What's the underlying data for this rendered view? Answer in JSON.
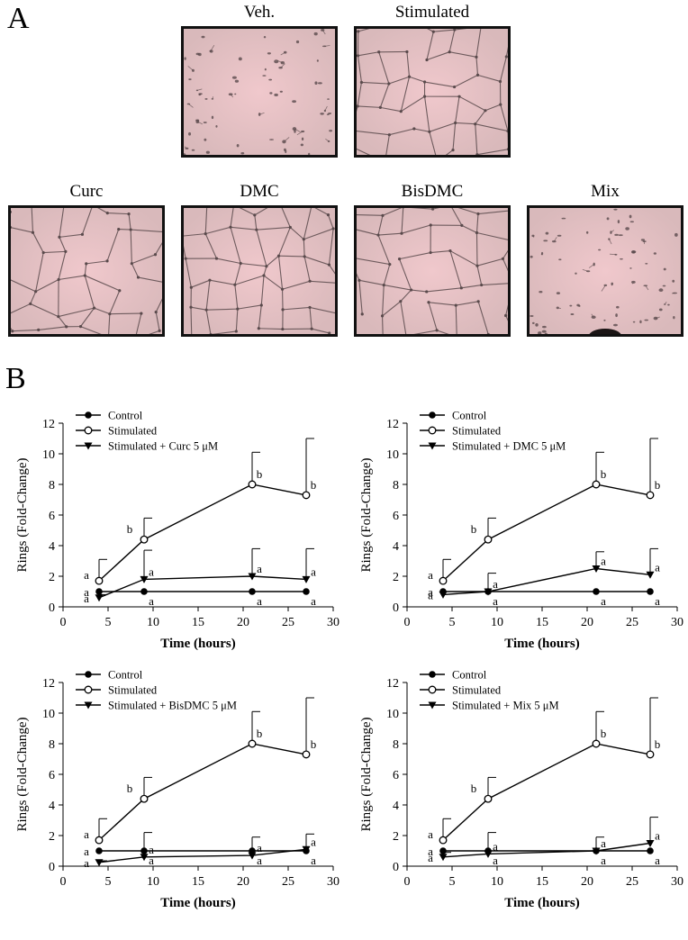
{
  "panels": {
    "a": "A",
    "b": "B"
  },
  "micrographs": [
    {
      "id": "veh",
      "label": "Veh.",
      "pattern": "sparse"
    },
    {
      "id": "stimulated",
      "label": "Stimulated",
      "pattern": "network"
    },
    {
      "id": "curc",
      "label": "Curc",
      "pattern": "network"
    },
    {
      "id": "dmc",
      "label": "DMC",
      "pattern": "network"
    },
    {
      "id": "bisdmc",
      "label": "BisDMC",
      "pattern": "network"
    },
    {
      "id": "mix",
      "label": "Mix",
      "pattern": "sparse"
    }
  ],
  "colors": {
    "micro_background": "#d9b9bb",
    "micro_center": "#f0c8cc",
    "micro_cells": "#5a4a4c",
    "line": "#000000"
  },
  "chart_data": [
    {
      "type": "line",
      "xlabel": "Time (hours)",
      "ylabel": "Rings (Fold-Change)",
      "xlim": [
        0,
        30
      ],
      "ylim": [
        0,
        12
      ],
      "xticks": [
        0,
        5,
        10,
        15,
        20,
        25,
        30
      ],
      "yticks": [
        0,
        2,
        4,
        6,
        8,
        10,
        12
      ],
      "grid": false,
      "legend_position": "top-left",
      "x": [
        4,
        9,
        21,
        27
      ],
      "series": [
        {
          "name": "Control",
          "marker": "filled-circle",
          "values": [
            1,
            1,
            1,
            1
          ],
          "errors": [
            0,
            0,
            0,
            0
          ],
          "labels": [
            "a",
            "a",
            "a",
            "a"
          ]
        },
        {
          "name": "Stimulated",
          "marker": "open-circle",
          "values": [
            1.7,
            4.4,
            8.0,
            7.3
          ],
          "errors": [
            1.4,
            1.4,
            2.1,
            3.7
          ],
          "labels": [
            "a",
            "b",
            "b",
            "b"
          ]
        },
        {
          "name": "Stimulated + Curc 5 μM",
          "marker": "filled-triangle",
          "values": [
            0.6,
            1.8,
            2.0,
            1.8
          ],
          "errors": [
            0.2,
            1.9,
            1.8,
            2.0
          ],
          "labels": [
            "a",
            "a",
            "a",
            "a"
          ]
        }
      ]
    },
    {
      "type": "line",
      "xlabel": "Time (hours)",
      "ylabel": "Rings (Fold-Change)",
      "xlim": [
        0,
        30
      ],
      "ylim": [
        0,
        12
      ],
      "xticks": [
        0,
        5,
        10,
        15,
        20,
        25,
        30
      ],
      "yticks": [
        0,
        2,
        4,
        6,
        8,
        10,
        12
      ],
      "grid": false,
      "legend_position": "top-left",
      "x": [
        4,
        9,
        21,
        27
      ],
      "series": [
        {
          "name": "Control",
          "marker": "filled-circle",
          "values": [
            1,
            1,
            1,
            1
          ],
          "errors": [
            0,
            0,
            0,
            0
          ],
          "labels": [
            "a",
            "a",
            "a",
            "a"
          ]
        },
        {
          "name": "Stimulated",
          "marker": "open-circle",
          "values": [
            1.7,
            4.4,
            8.0,
            7.3
          ],
          "errors": [
            1.4,
            1.4,
            2.1,
            3.7
          ],
          "labels": [
            "a",
            "b",
            "b",
            "b"
          ]
        },
        {
          "name": "Stimulated + DMC 5 μM",
          "marker": "filled-triangle",
          "values": [
            0.8,
            1.0,
            2.5,
            2.1
          ],
          "errors": [
            0.2,
            1.2,
            1.1,
            1.7
          ],
          "labels": [
            "a",
            "a",
            "a",
            "a"
          ]
        }
      ]
    },
    {
      "type": "line",
      "xlabel": "Time (hours)",
      "ylabel": "Rings (Fold-Change)",
      "xlim": [
        0,
        30
      ],
      "ylim": [
        0,
        12
      ],
      "xticks": [
        0,
        5,
        10,
        15,
        20,
        25,
        30
      ],
      "yticks": [
        0,
        2,
        4,
        6,
        8,
        10,
        12
      ],
      "grid": false,
      "legend_position": "top-left",
      "x": [
        4,
        9,
        21,
        27
      ],
      "series": [
        {
          "name": "Control",
          "marker": "filled-circle",
          "values": [
            1,
            1,
            1,
            1
          ],
          "errors": [
            0,
            0,
            0,
            0
          ],
          "labels": [
            "a",
            "a",
            "a",
            "a"
          ]
        },
        {
          "name": "Stimulated",
          "marker": "open-circle",
          "values": [
            1.7,
            4.4,
            8.0,
            7.3
          ],
          "errors": [
            1.4,
            1.4,
            2.1,
            3.7
          ],
          "labels": [
            "a",
            "b",
            "b",
            "b"
          ]
        },
        {
          "name": "Stimulated + BisDMC 5 μM",
          "marker": "filled-triangle",
          "values": [
            0.25,
            0.6,
            0.7,
            1.1
          ],
          "errors": [
            0.1,
            1.6,
            1.2,
            1.0
          ],
          "labels": [
            "a",
            "a",
            "a",
            "a"
          ]
        }
      ]
    },
    {
      "type": "line",
      "xlabel": "Time (hours)",
      "ylabel": "Rings (Fold-Change)",
      "xlim": [
        0,
        30
      ],
      "ylim": [
        0,
        12
      ],
      "xticks": [
        0,
        5,
        10,
        15,
        20,
        25,
        30
      ],
      "yticks": [
        0,
        2,
        4,
        6,
        8,
        10,
        12
      ],
      "grid": false,
      "legend_position": "top-left",
      "x": [
        4,
        9,
        21,
        27
      ],
      "series": [
        {
          "name": "Control",
          "marker": "filled-circle",
          "values": [
            1,
            1,
            1,
            1
          ],
          "errors": [
            0,
            0,
            0,
            0
          ],
          "labels": [
            "a",
            "a",
            "a",
            "a"
          ]
        },
        {
          "name": "Stimulated",
          "marker": "open-circle",
          "values": [
            1.7,
            4.4,
            8.0,
            7.3
          ],
          "errors": [
            1.4,
            1.4,
            2.1,
            3.7
          ],
          "labels": [
            "a",
            "b",
            "b",
            "b"
          ]
        },
        {
          "name": "Stimulated + Mix 5 μM",
          "marker": "filled-triangle",
          "values": [
            0.6,
            0.8,
            1.0,
            1.5
          ],
          "errors": [
            0.3,
            1.4,
            0.9,
            1.7
          ],
          "labels": [
            "a",
            "a",
            "a",
            "a"
          ]
        }
      ]
    }
  ]
}
